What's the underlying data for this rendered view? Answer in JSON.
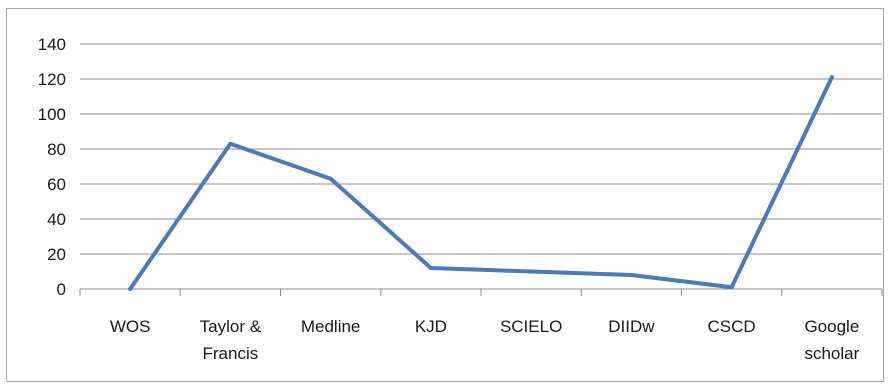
{
  "chart_data": {
    "type": "line",
    "title": "",
    "xlabel": "",
    "ylabel": "",
    "categories": [
      [
        "WOS"
      ],
      [
        "Taylor &",
        "Francis"
      ],
      [
        "Medline"
      ],
      [
        "KJD"
      ],
      [
        "SCIELO"
      ],
      [
        "DIIDw"
      ],
      [
        "CSCD"
      ],
      [
        "Google",
        "scholar"
      ]
    ],
    "series": [
      {
        "values": [
          0,
          83,
          63,
          12,
          10,
          8,
          1,
          121
        ]
      }
    ],
    "ylim": [
      0,
      140
    ],
    "yticks": [
      "0",
      "20",
      "40",
      "60",
      "80",
      "100",
      "120",
      "140"
    ],
    "grid": true,
    "legend": "none",
    "colors": {
      "line": "#4a7ab8",
      "grid": "#8c8c8c",
      "axis": "#8c8c8c"
    }
  }
}
